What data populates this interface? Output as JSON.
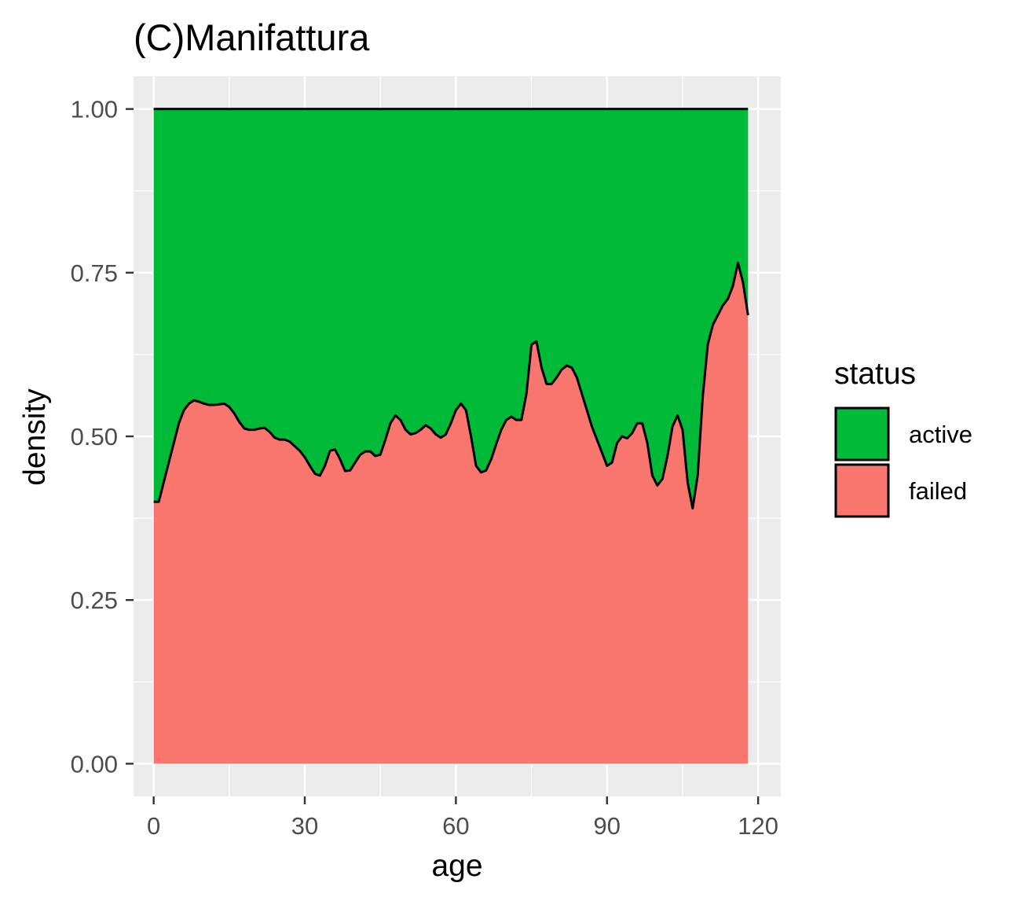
{
  "chart_data": {
    "type": "area",
    "stacked": "fill",
    "title": "(C)Manifattura",
    "xlabel": "age",
    "ylabel": "density",
    "xlim": [
      -4,
      124.5
    ],
    "ylim": [
      -0.05,
      1.05
    ],
    "x_ticks": [
      0,
      30,
      60,
      90,
      120
    ],
    "x_tick_labels": [
      "0",
      "30",
      "60",
      "90",
      "120"
    ],
    "y_ticks": [
      0,
      0.25,
      0.5,
      0.75,
      1.0
    ],
    "y_tick_labels": [
      "0.00",
      "0.25",
      "0.50",
      "0.75",
      "1.00"
    ],
    "grid": true,
    "legend": {
      "title": "status",
      "position": "right",
      "entries": [
        {
          "label": "active",
          "color": "#00BA38"
        },
        {
          "label": "failed",
          "color": "#F8766D"
        }
      ]
    },
    "x": [
      0,
      1,
      2,
      3,
      4,
      5,
      6,
      7,
      8,
      9,
      10,
      11,
      12,
      13,
      14,
      15,
      16,
      17,
      18,
      19,
      20,
      21,
      22,
      23,
      24,
      25,
      26,
      27,
      28,
      29,
      30,
      31,
      32,
      33,
      34,
      35,
      36,
      37,
      38,
      39,
      40,
      41,
      42,
      43,
      44,
      45,
      46,
      47,
      48,
      49,
      50,
      51,
      52,
      53,
      54,
      55,
      56,
      57,
      58,
      59,
      60,
      61,
      62,
      63,
      64,
      65,
      66,
      67,
      68,
      69,
      70,
      71,
      72,
      73,
      74,
      75,
      76,
      77,
      78,
      79,
      80,
      81,
      82,
      83,
      84,
      85,
      86,
      87,
      88,
      89,
      90,
      91,
      92,
      93,
      94,
      95,
      96,
      97,
      98,
      99,
      100,
      101,
      102,
      103,
      104,
      105,
      106,
      107,
      108,
      109,
      110,
      111,
      112,
      113,
      114,
      115,
      116,
      117,
      118
    ],
    "series": [
      {
        "name": "failed",
        "color": "#F8766D",
        "values": [
          0.4,
          0.4,
          0.43,
          0.46,
          0.49,
          0.52,
          0.54,
          0.55,
          0.555,
          0.553,
          0.55,
          0.548,
          0.548,
          0.549,
          0.55,
          0.545,
          0.535,
          0.522,
          0.512,
          0.51,
          0.51,
          0.512,
          0.513,
          0.507,
          0.498,
          0.495,
          0.495,
          0.492,
          0.485,
          0.478,
          0.468,
          0.455,
          0.443,
          0.44,
          0.455,
          0.478,
          0.48,
          0.465,
          0.447,
          0.448,
          0.46,
          0.472,
          0.477,
          0.477,
          0.47,
          0.472,
          0.495,
          0.52,
          0.532,
          0.525,
          0.51,
          0.503,
          0.505,
          0.51,
          0.517,
          0.512,
          0.503,
          0.498,
          0.503,
          0.52,
          0.54,
          0.55,
          0.54,
          0.5,
          0.455,
          0.445,
          0.448,
          0.465,
          0.488,
          0.51,
          0.525,
          0.53,
          0.525,
          0.525,
          0.565,
          0.64,
          0.645,
          0.605,
          0.58,
          0.58,
          0.59,
          0.602,
          0.608,
          0.605,
          0.59,
          0.565,
          0.54,
          0.515,
          0.495,
          0.475,
          0.455,
          0.46,
          0.49,
          0.5,
          0.497,
          0.505,
          0.52,
          0.52,
          0.49,
          0.44,
          0.425,
          0.435,
          0.47,
          0.515,
          0.532,
          0.51,
          0.43,
          0.39,
          0.44,
          0.56,
          0.64,
          0.67,
          0.685,
          0.7,
          0.71,
          0.73,
          0.765,
          0.735,
          0.685
        ]
      },
      {
        "name": "active",
        "color": "#00BA38",
        "top": 1.0
      }
    ]
  }
}
